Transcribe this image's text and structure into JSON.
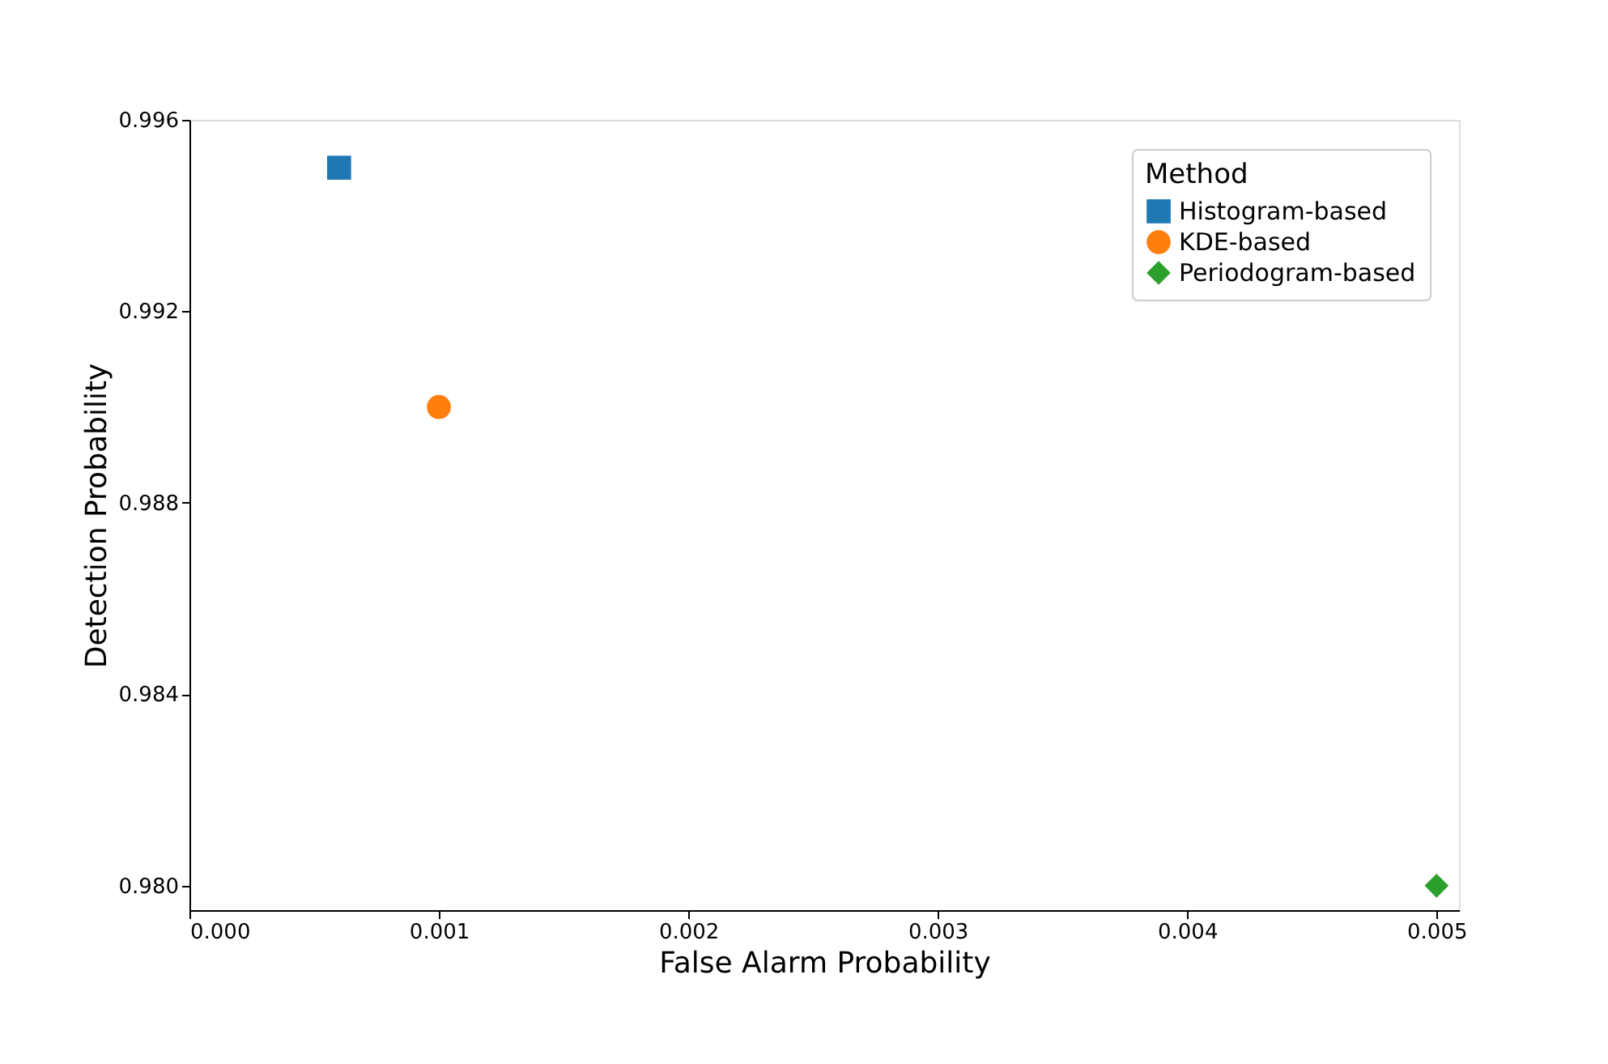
{
  "chart_data": {
    "type": "scatter",
    "xlabel": "False Alarm Probability",
    "ylabel": "Detection Probability",
    "legend_title": "Method",
    "legend": "top right",
    "grid": false,
    "xlim": [
      0,
      0.00509
    ],
    "ylim": [
      0.97949,
      0.996
    ],
    "xticks": [
      {
        "value": 0,
        "label": "0.000"
      },
      {
        "value": 0.001,
        "label": "0.001"
      },
      {
        "value": 0.002,
        "label": "0.002"
      },
      {
        "value": 0.003,
        "label": "0.003"
      },
      {
        "value": 0.004,
        "label": "0.004"
      },
      {
        "value": 0.005,
        "label": "0.005"
      }
    ],
    "yticks": [
      {
        "value": 0.98,
        "label": "0.980"
      },
      0.984,
      0.988,
      0.992,
      0.996
    ],
    "series": [
      {
        "name": "Histogram-based",
        "color": "#1f77b4",
        "marker": "square",
        "x": [
          0.0006
        ],
        "values": [
          0.995
        ]
      },
      {
        "name": "KDE-based",
        "color": "#ff7f0e",
        "marker": "circle",
        "x": [
          0.001
        ],
        "values": [
          0.99
        ]
      },
      {
        "name": "Periodogram-based",
        "color": "#2ca02c",
        "marker": "diamond",
        "x": [
          0.005
        ],
        "values": [
          0.98
        ]
      }
    ]
  }
}
